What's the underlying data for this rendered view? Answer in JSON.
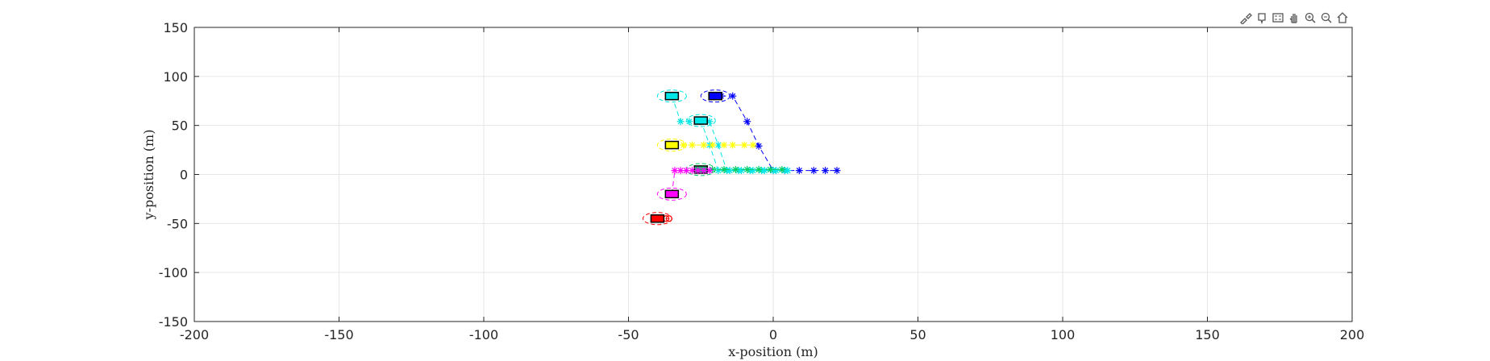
{
  "toolbar": {
    "buttons": [
      {
        "name": "brush-icon",
        "label": "brush"
      },
      {
        "name": "datatip-icon",
        "label": "data tips"
      },
      {
        "name": "legend-icon",
        "label": "legend"
      },
      {
        "name": "pan-icon",
        "label": "pan"
      },
      {
        "name": "zoom-in-icon",
        "label": "zoom in"
      },
      {
        "name": "zoom-out-icon",
        "label": "zoom out"
      },
      {
        "name": "home-icon",
        "label": "restore view"
      }
    ]
  },
  "chart_data": {
    "type": "scatter",
    "title": "",
    "xlabel": "x-position (m)",
    "ylabel": "y-position (m)",
    "xlim": [
      -200,
      200
    ],
    "ylim": [
      -150,
      150
    ],
    "xticks": [
      -200,
      -150,
      -100,
      -50,
      0,
      50,
      100,
      150,
      200
    ],
    "yticks": [
      -150,
      -100,
      -50,
      0,
      50,
      100,
      150
    ],
    "grid": true,
    "series": [
      {
        "color": "#0000ff",
        "vehicle": [
          -20,
          80
        ],
        "path": [
          [
            -18,
            80
          ],
          [
            -14,
            80
          ],
          [
            -9,
            54
          ],
          [
            -5,
            29
          ],
          [
            0,
            4
          ],
          [
            4,
            4
          ],
          [
            9,
            4
          ],
          [
            14,
            4
          ],
          [
            18,
            4
          ],
          [
            22,
            4
          ]
        ],
        "marker": "*"
      },
      {
        "color": "#00e5e5",
        "vehicle": [
          -35,
          80
        ],
        "path": [
          [
            -35,
            80
          ],
          [
            -32,
            54
          ],
          [
            -29,
            54
          ],
          [
            -25,
            54
          ],
          [
            -22,
            54
          ],
          [
            -19,
            30
          ],
          [
            -16,
            4
          ],
          [
            -12,
            4
          ],
          [
            -8,
            4
          ],
          [
            -4,
            4
          ],
          [
            0,
            4
          ],
          [
            4,
            4
          ]
        ],
        "marker": "*"
      },
      {
        "color": "#00e5e5",
        "vehicle": [
          -25,
          55
        ],
        "path": [
          [
            -25,
            55
          ],
          [
            -22,
            30
          ],
          [
            -19,
            4
          ],
          [
            -15,
            4
          ],
          [
            -11,
            4
          ],
          [
            -7,
            4
          ],
          [
            -3,
            4
          ],
          [
            1,
            4
          ],
          [
            5,
            4
          ]
        ],
        "marker": "*"
      },
      {
        "color": "#ffff00",
        "vehicle": [
          -35,
          30
        ],
        "path": [
          [
            -35,
            30
          ],
          [
            -31,
            30
          ],
          [
            -28,
            30
          ],
          [
            -24,
            30
          ],
          [
            -21,
            30
          ],
          [
            -17,
            30
          ],
          [
            -14,
            30
          ],
          [
            -10,
            30
          ],
          [
            -7,
            30
          ]
        ],
        "marker": "*"
      },
      {
        "color": "#00cc66",
        "vehicle": [
          -25,
          5
        ],
        "path": [
          [
            -25,
            5
          ],
          [
            -21,
            5
          ],
          [
            -17,
            5
          ],
          [
            -13,
            5
          ],
          [
            -9,
            5
          ],
          [
            -5,
            5
          ],
          [
            -1,
            5
          ],
          [
            3,
            5
          ]
        ],
        "marker": "*"
      },
      {
        "color": "#ff00ff",
        "vehicle": [
          -35,
          -20
        ],
        "path": [
          [
            -35,
            -20
          ],
          [
            -34,
            4
          ],
          [
            -32,
            4
          ],
          [
            -30,
            4
          ],
          [
            -28,
            4
          ],
          [
            -26,
            4
          ],
          [
            -24,
            4
          ],
          [
            -22,
            4
          ]
        ],
        "marker": "*"
      },
      {
        "color": "#ff0000",
        "vehicle": [
          -40,
          -45
        ],
        "path": [
          [
            -40,
            -45
          ],
          [
            -37,
            -45
          ],
          [
            -36,
            -45
          ]
        ],
        "marker": "o"
      }
    ]
  }
}
